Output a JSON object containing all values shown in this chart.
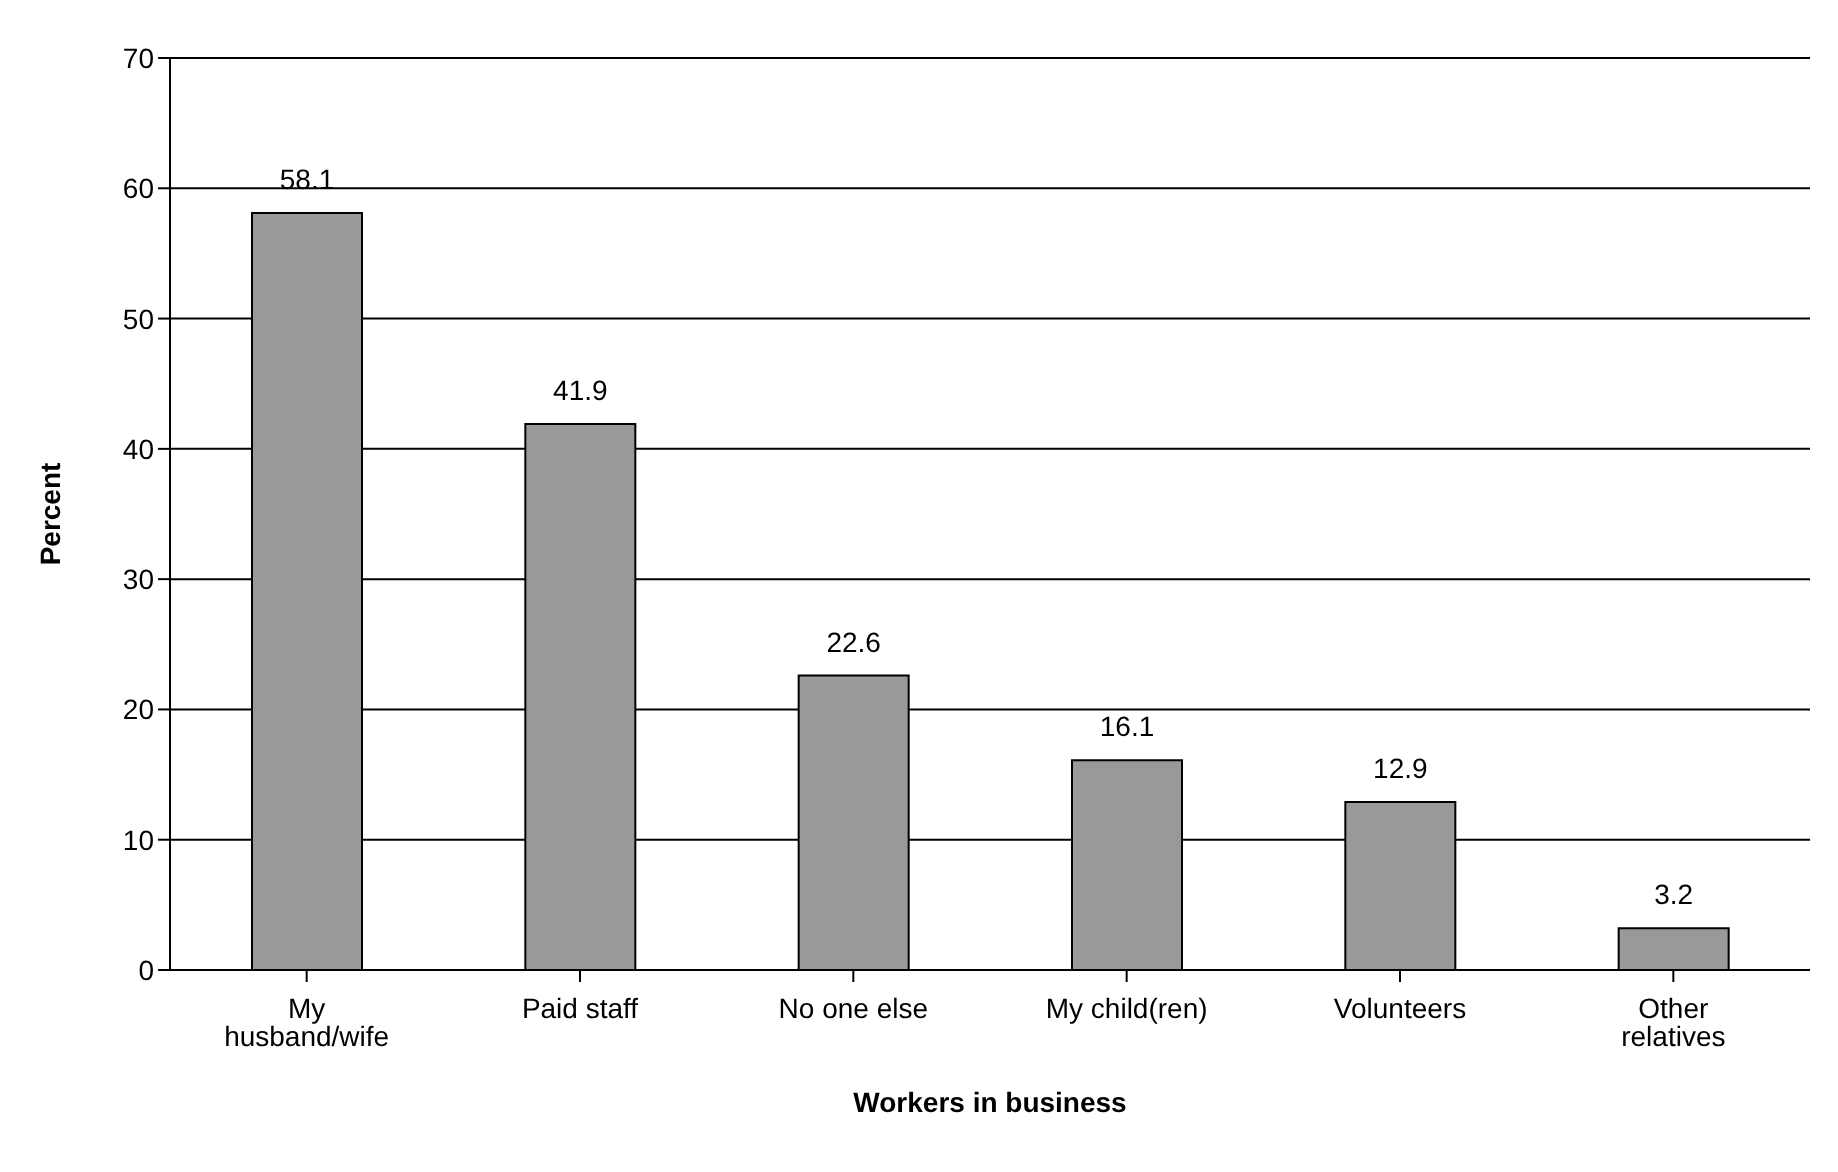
{
  "chart_data": {
    "type": "bar",
    "xlabel": "Workers in business",
    "ylabel": "Percent",
    "categories": [
      "My husband/wife",
      "Paid staff",
      "No one else",
      "My child(ren)",
      "Volunteers",
      "Other relatives"
    ],
    "values": [
      58.1,
      41.9,
      22.6,
      16.1,
      12.9,
      3.2
    ],
    "color": "#999999",
    "ylim": [
      0,
      70
    ],
    "yticks": [
      0,
      10,
      20,
      30,
      40,
      50,
      60,
      70
    ],
    "grid": "y",
    "data_labels": true
  }
}
